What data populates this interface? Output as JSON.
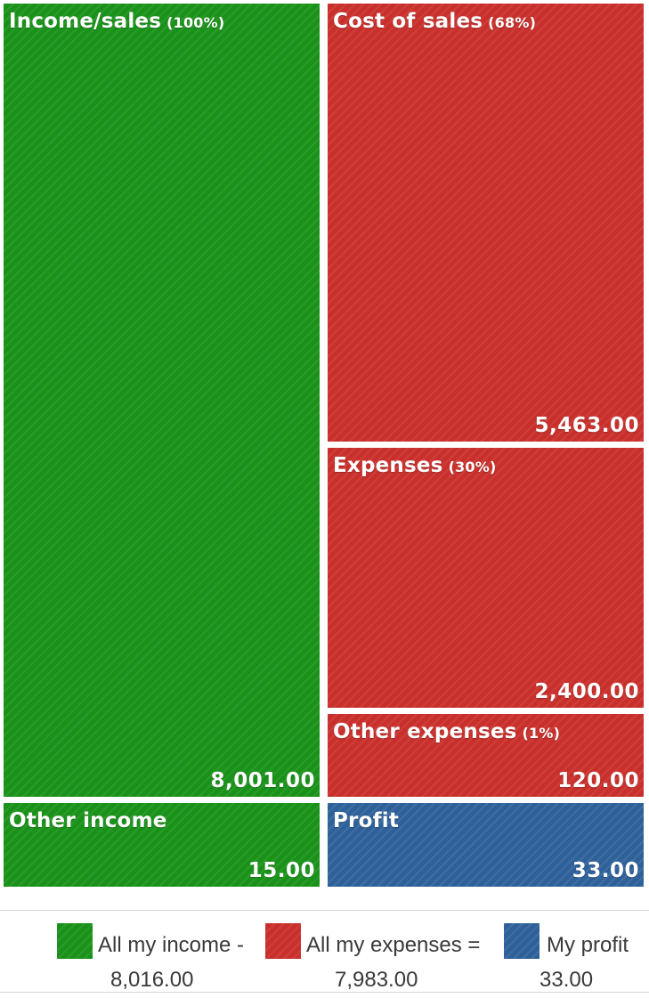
{
  "chart_data": {
    "type": "treemap",
    "groups": [
      {
        "name": "Income",
        "color": "#1a921a",
        "blocks": [
          {
            "label": "Income/sales",
            "pct": "(100%)",
            "value": 8001.0,
            "value_label": "8,001.00"
          },
          {
            "label": "Other income",
            "pct": "",
            "value": 15.0,
            "value_label": "15.00"
          }
        ]
      },
      {
        "name": "Expenses",
        "color": "#c9302c",
        "blocks": [
          {
            "label": "Cost of sales",
            "pct": "(68%)",
            "value": 5463.0,
            "value_label": "5,463.00"
          },
          {
            "label": "Expenses",
            "pct": "(30%)",
            "value": 2400.0,
            "value_label": "2,400.00"
          },
          {
            "label": "Other expenses",
            "pct": "(1%)",
            "value": 120.0,
            "value_label": "120.00"
          }
        ]
      },
      {
        "name": "Profit",
        "color": "#2e6099",
        "blocks": [
          {
            "label": "Profit",
            "pct": "",
            "value": 33.0,
            "value_label": "33.00"
          }
        ]
      }
    ]
  },
  "legend": {
    "income": {
      "label": "All my income -",
      "value": "8,016.00",
      "color": "#1a921a"
    },
    "expenses": {
      "label": "All my expenses =",
      "value": "7,983.00",
      "color": "#c9302c"
    },
    "profit": {
      "label": "My profit",
      "value": "33.00",
      "color": "#2e6099"
    }
  }
}
